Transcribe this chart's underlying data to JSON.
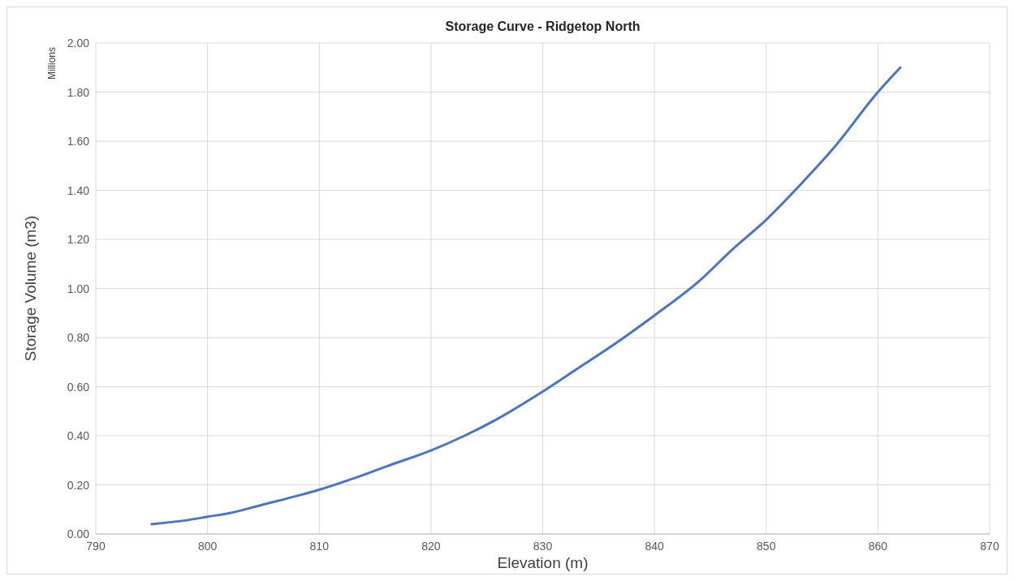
{
  "chart_data": {
    "type": "line",
    "title": "Storage Curve - Ridgetop North",
    "xlabel": "Elevation (m)",
    "ylabel": "Storage Volume (m3)",
    "annotations": [
      "Millions"
    ],
    "series": [
      {
        "color": "#4a74c4",
        "x": [
          795,
          798,
          800,
          802,
          805,
          808,
          810,
          813,
          816,
          820,
          823,
          826,
          830,
          833,
          836,
          840,
          844,
          847,
          850,
          853,
          856,
          860,
          862
        ],
        "values": [
          0.04,
          0.055,
          0.07,
          0.085,
          0.12,
          0.155,
          0.18,
          0.225,
          0.275,
          0.34,
          0.4,
          0.47,
          0.58,
          0.67,
          0.76,
          0.89,
          1.03,
          1.16,
          1.28,
          1.42,
          1.57,
          1.8,
          1.9
        ]
      }
    ],
    "xlim": [
      790,
      870
    ],
    "xticks": [
      790,
      800,
      810,
      820,
      830,
      840,
      850,
      860,
      870
    ],
    "ylim": [
      0,
      2
    ],
    "yticks": [
      {
        "value": 0,
        "label": "0.00"
      },
      {
        "value": 0.2,
        "label": "0.20"
      },
      {
        "value": 0.4,
        "label": "0.40"
      },
      {
        "value": 0.6,
        "label": "0.60"
      },
      {
        "value": 0.8,
        "label": "0.80"
      },
      {
        "value": 1,
        "label": "1.00"
      },
      {
        "value": 1.2,
        "label": "1.20"
      },
      {
        "value": 1.4,
        "label": "1.40"
      },
      {
        "value": 1.6,
        "label": "1.60"
      },
      {
        "value": 1.8,
        "label": "1.80"
      },
      {
        "value": 2,
        "label": "2.00"
      }
    ],
    "grid": true,
    "marker": "none",
    "line_style": "solid"
  }
}
